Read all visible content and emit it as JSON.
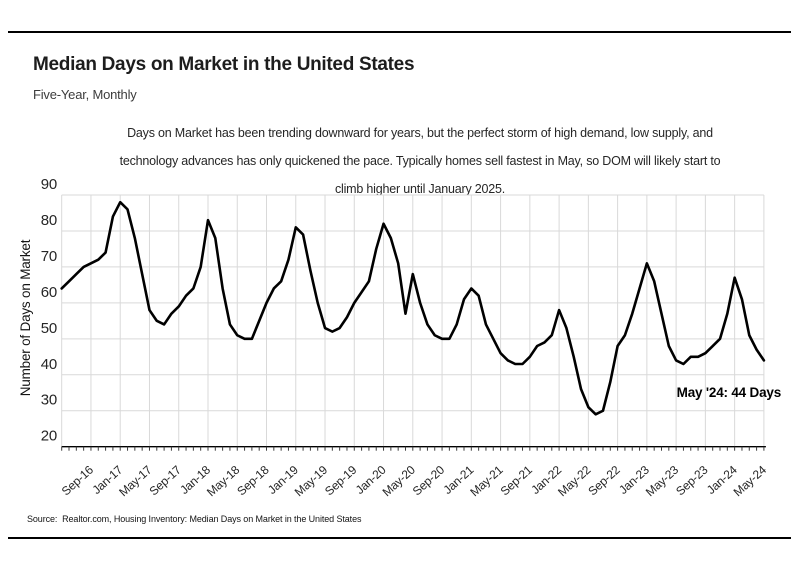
{
  "header": {
    "title": "Median Days on Market in the United States",
    "subtitle": "Five-Year, Monthly"
  },
  "annotation": {
    "lines": [
      "Days on Market has been trending downward for years, but the perfect storm of high demand, low supply, and",
      "technology advances has only quickened the pace. Typically homes sell fastest in May, so DOM will likely start to",
      "climb higher until January 2025."
    ]
  },
  "source": {
    "text": "Source:  Realtor.com, Housing Inventory: Median Days on Market in the United States"
  },
  "chart_data": {
    "type": "line",
    "title": "Median Days on Market in the United States",
    "xlabel": "",
    "ylabel": "Number of Days on Market",
    "ylim": [
      20,
      90
    ],
    "grid": true,
    "grid_color": "#d9d9d9",
    "axis_color": "#000000",
    "line_color": "#000000",
    "text_color": "#262626",
    "annotation": "May '24: 44 Days",
    "y_ticks": [
      20,
      30,
      40,
      50,
      60,
      70,
      80,
      90
    ],
    "x_tick_labels": [
      "Sep-16",
      "Jan-17",
      "May-17",
      "Sep-17",
      "Jan-18",
      "May-18",
      "Sep-18",
      "Jan-19",
      "May-19",
      "Sep-19",
      "Jan-20",
      "May-20",
      "Sep-20",
      "Jan-21",
      "May-21",
      "Sep-21",
      "Jan-22",
      "May-22",
      "Sep-22",
      "Jan-23",
      "May-23",
      "Sep-23",
      "Jan-24",
      "May-24"
    ],
    "x": [
      "May-16",
      "Jun-16",
      "Jul-16",
      "Aug-16",
      "Sep-16",
      "Oct-16",
      "Nov-16",
      "Dec-16",
      "Jan-17",
      "Feb-17",
      "Mar-17",
      "Apr-17",
      "May-17",
      "Jun-17",
      "Jul-17",
      "Aug-17",
      "Sep-17",
      "Oct-17",
      "Nov-17",
      "Dec-17",
      "Jan-18",
      "Feb-18",
      "Mar-18",
      "Apr-18",
      "May-18",
      "Jun-18",
      "Jul-18",
      "Aug-18",
      "Sep-18",
      "Oct-18",
      "Nov-18",
      "Dec-18",
      "Jan-19",
      "Feb-19",
      "Mar-19",
      "Apr-19",
      "May-19",
      "Jun-19",
      "Jul-19",
      "Aug-19",
      "Sep-19",
      "Oct-19",
      "Nov-19",
      "Dec-19",
      "Jan-20",
      "Feb-20",
      "Mar-20",
      "Apr-20",
      "May-20",
      "Jun-20",
      "Jul-20",
      "Aug-20",
      "Sep-20",
      "Oct-20",
      "Nov-20",
      "Dec-20",
      "Jan-21",
      "Feb-21",
      "Mar-21",
      "Apr-21",
      "May-21",
      "Jun-21",
      "Jul-21",
      "Aug-21",
      "Sep-21",
      "Oct-21",
      "Nov-21",
      "Dec-21",
      "Jan-22",
      "Feb-22",
      "Mar-22",
      "Apr-22",
      "May-22",
      "Jun-22",
      "Jul-22",
      "Aug-22",
      "Sep-22",
      "Oct-22",
      "Nov-22",
      "Dec-22",
      "Jan-23",
      "Feb-23",
      "Mar-23",
      "Apr-23",
      "May-23",
      "Jun-23",
      "Jul-23",
      "Aug-23",
      "Sep-23",
      "Oct-23",
      "Nov-23",
      "Dec-23",
      "Jan-24",
      "Feb-24",
      "Mar-24",
      "Apr-24",
      "May-24"
    ],
    "series": [
      {
        "name": "Median Days on Market",
        "values": [
          64,
          66,
          68,
          70,
          71,
          72,
          74,
          84,
          88,
          86,
          78,
          68,
          58,
          55,
          54,
          57,
          59,
          62,
          64,
          70,
          83,
          78,
          64,
          54,
          51,
          50,
          50,
          55,
          60,
          64,
          66,
          72,
          81,
          79,
          69,
          60,
          53,
          52,
          53,
          56,
          60,
          63,
          66,
          75,
          82,
          78,
          71,
          57,
          68,
          60,
          54,
          51,
          50,
          50,
          54,
          61,
          64,
          62,
          54,
          50,
          46,
          44,
          43,
          43,
          45,
          48,
          49,
          51,
          58,
          53,
          45,
          36,
          31,
          29,
          30,
          38,
          48,
          51,
          57,
          64,
          71,
          66,
          57,
          48,
          44,
          43,
          45,
          45,
          46,
          48,
          50,
          57,
          67,
          61,
          51,
          47,
          44
        ]
      }
    ]
  }
}
